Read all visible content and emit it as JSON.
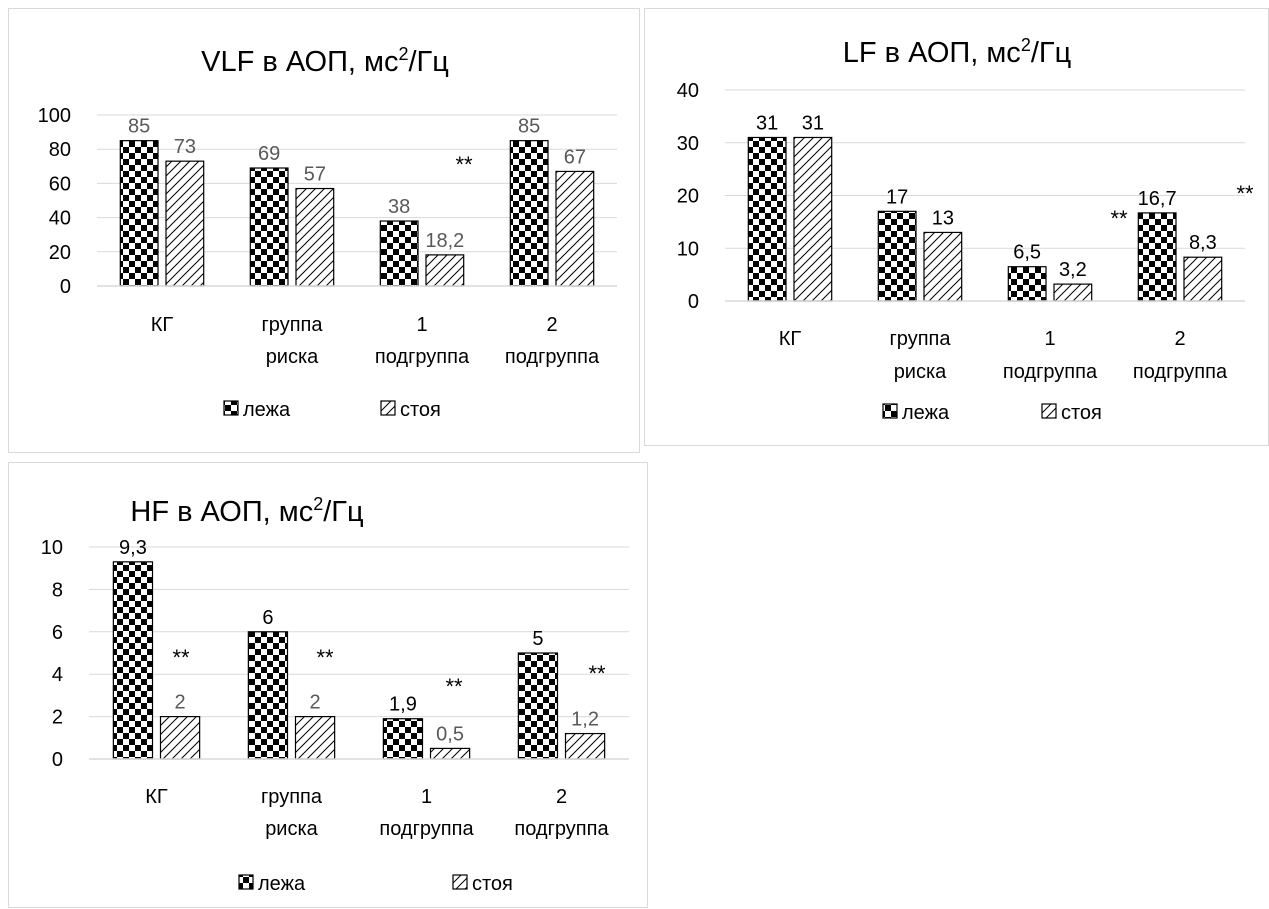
{
  "colors": {
    "axis": "#d9d9d9",
    "grid": "#d9d9d9",
    "bar_stroke": "#000000",
    "text": "#000000",
    "label_gray": "#595959"
  },
  "chart_data": [
    {
      "type": "bar",
      "title": "VLF в АОП, мс",
      "title_sup": "2",
      "title_suffix": "/Гц",
      "categories": [
        [
          "КГ"
        ],
        [
          "группа",
          "риска"
        ],
        [
          "1",
          "подгруппа"
        ],
        [
          "2",
          "подгруппа"
        ]
      ],
      "series": [
        {
          "name": "лежа",
          "pattern": "checker",
          "values": [
            85,
            69,
            38,
            85
          ],
          "labels": [
            "85",
            "69",
            "38",
            "85"
          ]
        },
        {
          "name": "стоя",
          "pattern": "hatch",
          "values": [
            73,
            57,
            18.2,
            67
          ],
          "labels": [
            "73",
            "57",
            "18,2",
            "67"
          ]
        }
      ],
      "yticks": [
        "0",
        "20",
        "40",
        "60",
        "80",
        "100"
      ],
      "ylim": [
        0,
        100
      ],
      "grid": true,
      "legend_position": "bottom",
      "annotations": [
        {
          "category_index": 2,
          "text": "**"
        }
      ]
    },
    {
      "type": "bar",
      "title": "LF в АОП, мс",
      "title_sup": "2",
      "title_suffix": "/Гц",
      "categories": [
        [
          "КГ"
        ],
        [
          "группа",
          "риска"
        ],
        [
          "1",
          "подгруппа"
        ],
        [
          "2",
          "подгруппа"
        ]
      ],
      "series": [
        {
          "name": "лежа",
          "pattern": "checker",
          "values": [
            31,
            17,
            6.5,
            16.7
          ],
          "labels": [
            "31",
            "17",
            "6,5",
            "16,7"
          ]
        },
        {
          "name": "стоя",
          "pattern": "hatch",
          "values": [
            31,
            13,
            3.2,
            8.3
          ],
          "labels": [
            "31",
            "13",
            "3,2",
            "8,3"
          ]
        }
      ],
      "yticks": [
        "0",
        "10",
        "20",
        "30",
        "40"
      ],
      "ylim": [
        0,
        40
      ],
      "grid": true,
      "legend_position": "bottom",
      "annotations": [
        {
          "category_index": 2,
          "text": "**"
        },
        {
          "category_index": 3,
          "text": "**"
        }
      ]
    },
    {
      "type": "bar",
      "title": "HF в АОП, мс",
      "title_sup": "2",
      "title_suffix": "/Гц",
      "categories": [
        [
          "КГ"
        ],
        [
          "группа",
          "риска"
        ],
        [
          "1",
          "подгруппа"
        ],
        [
          "2",
          "подгруппа"
        ]
      ],
      "series": [
        {
          "name": "лежа",
          "pattern": "checker",
          "values": [
            9.3,
            6,
            1.9,
            5
          ],
          "labels": [
            "9,3",
            "6",
            "1,9",
            "5"
          ]
        },
        {
          "name": "стоя",
          "pattern": "hatch",
          "values": [
            2,
            2,
            0.5,
            1.2
          ],
          "labels": [
            "2",
            "2",
            "0,5",
            "1,2"
          ]
        }
      ],
      "yticks": [
        "0",
        "2",
        "4",
        "6",
        "8",
        "10"
      ],
      "ylim": [
        0,
        10
      ],
      "grid": true,
      "legend_position": "bottom",
      "annotations": [
        {
          "category_index": 0,
          "text": "**"
        },
        {
          "category_index": 1,
          "text": "**"
        },
        {
          "category_index": 2,
          "text": "**"
        },
        {
          "category_index": 3,
          "text": "**"
        }
      ]
    }
  ]
}
